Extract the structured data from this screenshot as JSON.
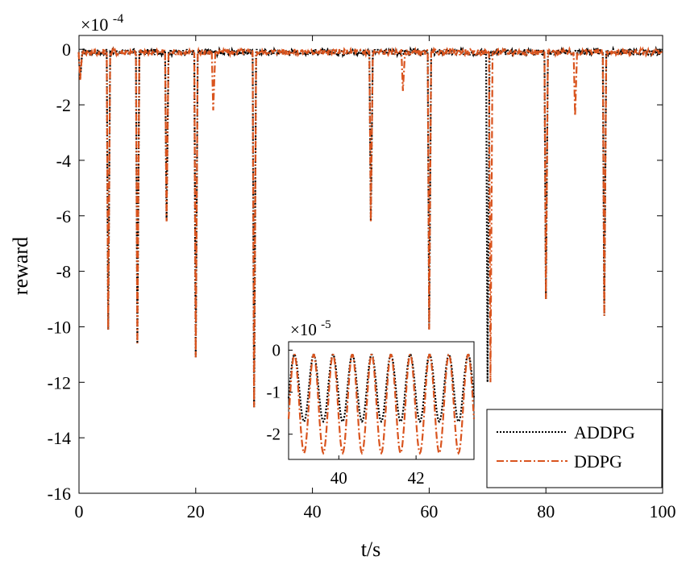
{
  "chart_data": [
    {
      "type": "line",
      "xlabel": "t/s",
      "ylabel": "reward",
      "exponent_base": "×10",
      "exponent_power": "-4",
      "xlim": [
        0,
        100
      ],
      "ylim": [
        -16,
        0.5
      ],
      "xticks": [
        0,
        20,
        40,
        60,
        80,
        100
      ],
      "yticks": [
        0,
        -2,
        -4,
        -6,
        -8,
        -10,
        -12,
        -14,
        -16
      ],
      "grid": false,
      "legend_position": "lower-right",
      "baseline": -0.1,
      "series": [
        {
          "name": "ADDPG",
          "color": "#000000",
          "style": "dotted",
          "spikes": [
            {
              "t": 0.2,
              "min": -1.1
            },
            {
              "t": 5,
              "min": -10.1
            },
            {
              "t": 10,
              "min": -10.6
            },
            {
              "t": 15,
              "min": -6.2
            },
            {
              "t": 20,
              "min": -11.1
            },
            {
              "t": 30,
              "min": -12.9
            },
            {
              "t": 50,
              "min": -6.2
            },
            {
              "t": 60,
              "min": -10.1
            },
            {
              "t": 70,
              "min": -12.0
            },
            {
              "t": 80,
              "min": -9.0
            },
            {
              "t": 90,
              "min": -9.6
            }
          ]
        },
        {
          "name": "DDPG",
          "color": "#d9541e",
          "style": "dashdot",
          "spikes": [
            {
              "t": 0.2,
              "min": -1.1
            },
            {
              "t": 5,
              "min": -10.1
            },
            {
              "t": 10,
              "min": -10.6
            },
            {
              "t": 15,
              "min": -6.2
            },
            {
              "t": 20,
              "min": -11.1
            },
            {
              "t": 23,
              "min": -2.2
            },
            {
              "t": 30,
              "min": -12.9
            },
            {
              "t": 50,
              "min": -6.2
            },
            {
              "t": 55.5,
              "min": -1.5
            },
            {
              "t": 60,
              "min": -10.1
            },
            {
              "t": 70.5,
              "min": -12.0
            },
            {
              "t": 80,
              "min": -9.0
            },
            {
              "t": 85,
              "min": -2.4
            },
            {
              "t": 90,
              "min": -9.6
            }
          ]
        }
      ]
    },
    {
      "type": "line",
      "role": "inset",
      "exponent_base": "×10",
      "exponent_power": "-5",
      "xlim": [
        38.7,
        43.5
      ],
      "ylim": [
        -2.6,
        0.2
      ],
      "xticks": [
        40,
        42
      ],
      "yticks": [
        0,
        -1,
        -2
      ],
      "series": [
        {
          "name": "ADDPG",
          "color": "#000000",
          "style": "dotted",
          "period": 0.5,
          "max": -0.1,
          "min": -1.7,
          "phase": 38.85
        },
        {
          "name": "DDPG",
          "color": "#d9541e",
          "style": "dashdot",
          "period": 0.5,
          "max": -0.1,
          "min": -2.45,
          "phase": 38.85
        }
      ]
    }
  ]
}
